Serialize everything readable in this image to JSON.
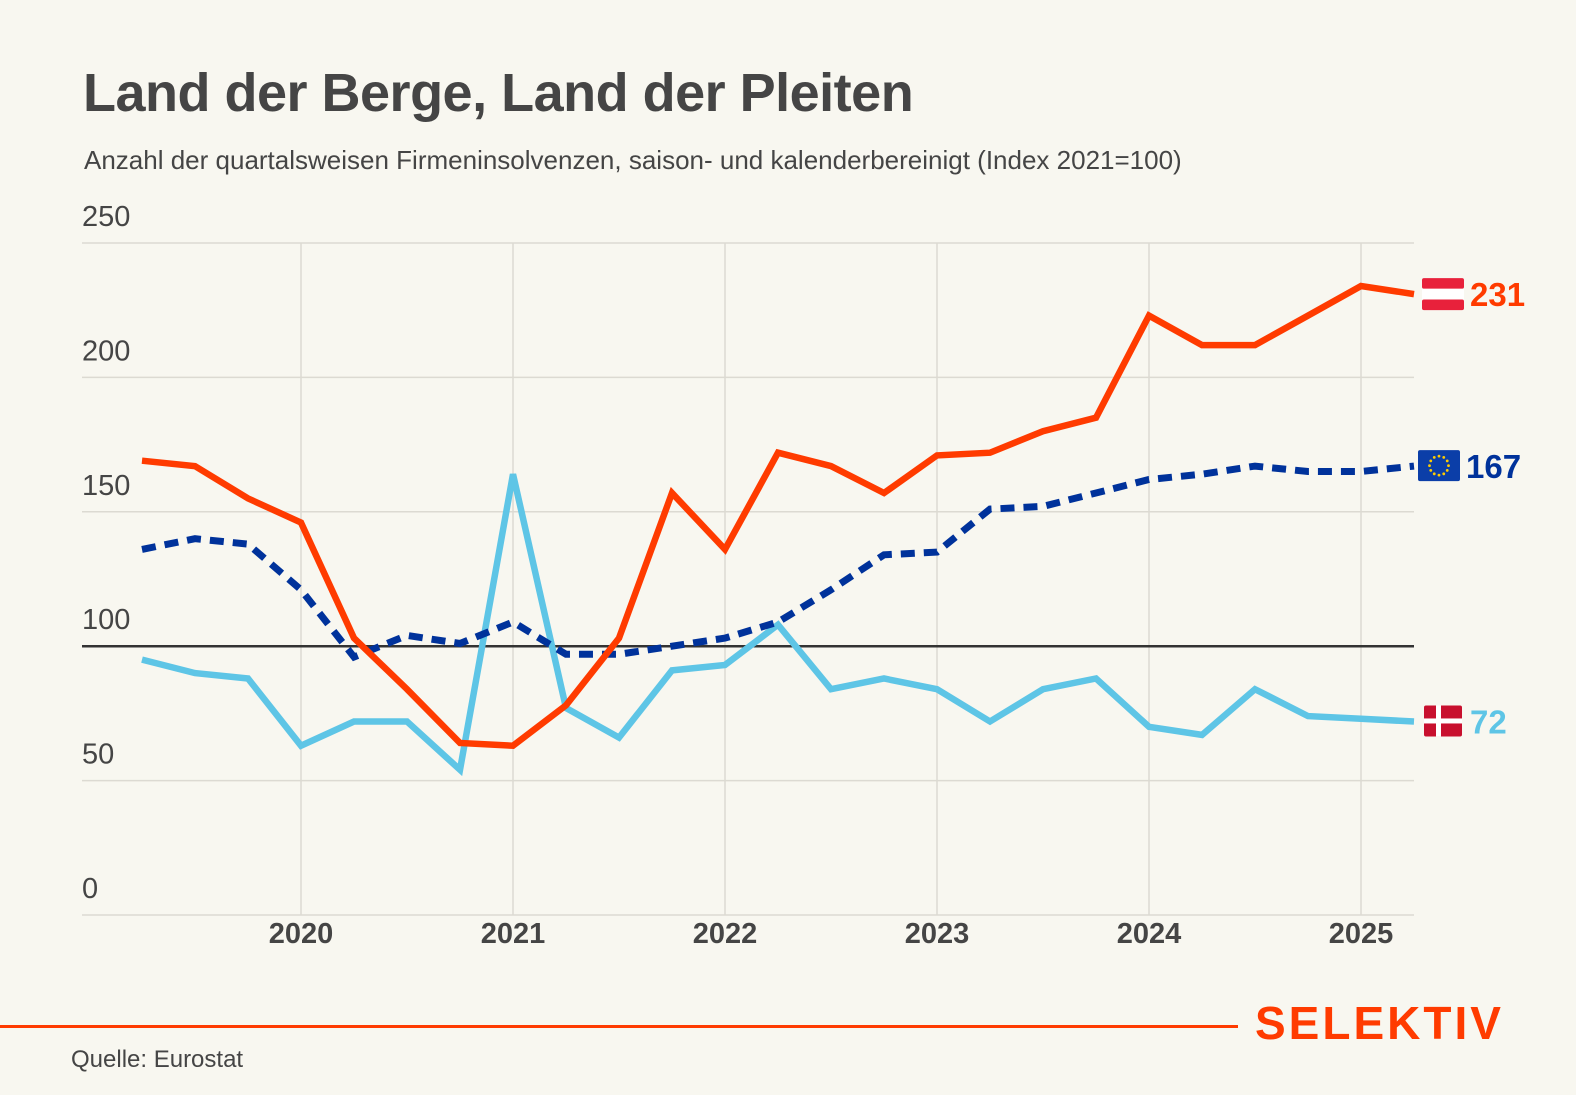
{
  "header": {
    "title": "Land der Berge, Land der Pleiten",
    "subtitle": "Anzahl der quartalsweisen Firmeninsolvenzen, saison- und kalenderbereinigt (Index 2021=100)"
  },
  "footer": {
    "source": "Quelle: Eurostat",
    "brand": "SELEKTIV"
  },
  "chart_data": {
    "type": "line",
    "title": "Land der Berge, Land der Pleiten",
    "subtitle": "Anzahl der quartalsweisen Firmeninsolvenzen, saison- und kalenderbereinigt (Index 2021=100)",
    "xlabel": "",
    "ylabel": "",
    "ylim": [
      0,
      250
    ],
    "yticks": [
      0,
      50,
      100,
      150,
      200,
      250
    ],
    "xlim": [
      2019.25,
      2025.25
    ],
    "xticks": [
      2020,
      2021,
      2022,
      2023,
      2024,
      2025
    ],
    "reference_line": 100,
    "grid": true,
    "x": [
      "2019-Q2",
      "2019-Q3",
      "2019-Q4",
      "2020-Q1",
      "2020-Q2",
      "2020-Q3",
      "2020-Q4",
      "2021-Q1",
      "2021-Q2",
      "2021-Q3",
      "2021-Q4",
      "2022-Q1",
      "2022-Q2",
      "2022-Q3",
      "2022-Q4",
      "2023-Q1",
      "2023-Q2",
      "2023-Q3",
      "2023-Q4",
      "2024-Q1",
      "2024-Q2",
      "2024-Q3",
      "2024-Q4",
      "2025-Q1",
      "2025-Q2"
    ],
    "series": [
      {
        "name": "Österreich",
        "flag": "austria-flag",
        "color": "#ff3b00",
        "style": "solid",
        "end_label": "231",
        "values": [
          169,
          167,
          155,
          146,
          103,
          84,
          64,
          63,
          78,
          103,
          157,
          136,
          172,
          167,
          157,
          171,
          172,
          180,
          185,
          223,
          212,
          212,
          223,
          234,
          231
        ]
      },
      {
        "name": "EU",
        "flag": "eu-flag",
        "color": "#00329b",
        "style": "dashed",
        "end_label": "167",
        "values": [
          136,
          140,
          138,
          121,
          96,
          104,
          101,
          109,
          97,
          97,
          100,
          103,
          109,
          121,
          134,
          135,
          151,
          152,
          157,
          162,
          164,
          167,
          165,
          165,
          167
        ]
      },
      {
        "name": "Dänemark",
        "flag": "denmark-flag",
        "color": "#5ec5e6",
        "style": "solid",
        "end_label": "72",
        "values": [
          95,
          90,
          88,
          63,
          72,
          72,
          54,
          164,
          77,
          66,
          91,
          93,
          108,
          84,
          88,
          84,
          72,
          84,
          88,
          70,
          67,
          84,
          74,
          73,
          72
        ]
      }
    ]
  }
}
